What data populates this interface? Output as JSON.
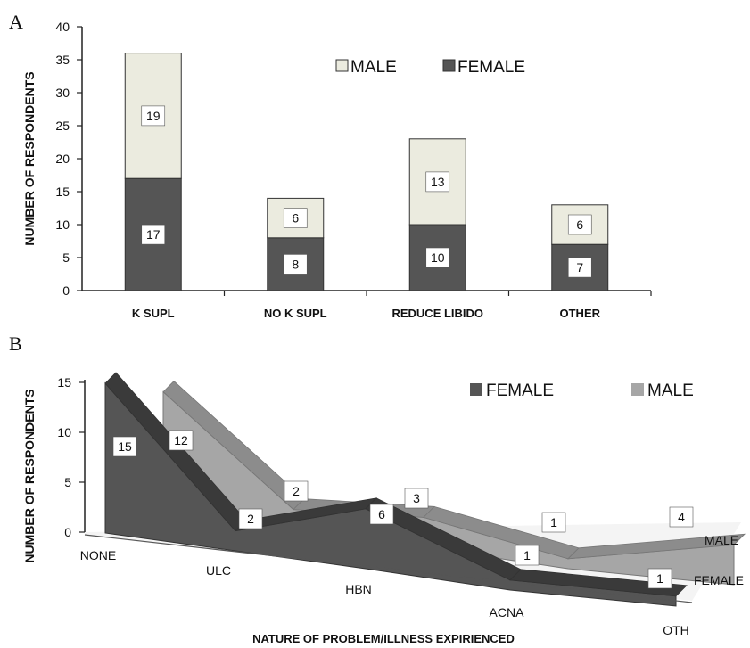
{
  "panels": {
    "a_label": "A",
    "b_label": "B"
  },
  "chart_data": [
    {
      "type": "bar",
      "stacked": true,
      "categories": [
        "K SUPL",
        "NO K SUPL",
        "REDUCE LIBIDO",
        "OTHER"
      ],
      "series": [
        {
          "name": "FEMALE",
          "values": [
            17,
            8,
            10,
            7
          ],
          "color": "#555555"
        },
        {
          "name": "MALE",
          "values": [
            19,
            6,
            13,
            6
          ],
          "color": "#ebebdf"
        }
      ],
      "xlabel": "",
      "ylabel": "NUMBER OF RESPONDENTS",
      "ylim": [
        0,
        40
      ],
      "yticks": [
        0,
        5,
        10,
        15,
        20,
        25,
        30,
        35,
        40
      ],
      "grid": false,
      "legend": {
        "position": "top-right",
        "entries": [
          "MALE",
          "FEMALE"
        ]
      }
    },
    {
      "type": "area",
      "three_d": true,
      "categories": [
        "NONE",
        "ULC",
        "HBN",
        "ACNA",
        "OTH"
      ],
      "series": [
        {
          "name": "FEMALE",
          "values": [
            15,
            2,
            6,
            1,
            1
          ],
          "color": "#555555"
        },
        {
          "name": "MALE",
          "values": [
            12,
            2,
            3,
            1,
            4
          ],
          "color": "#a6a6a6"
        }
      ],
      "depth_labels": [
        "MALE",
        "FEMALE"
      ],
      "xlabel": "NATURE OF PROBLEM/ILLNESS EXPIRIENCED",
      "ylabel": "NUMBER OF RESPONDENTS",
      "ylim": [
        0,
        15
      ],
      "yticks": [
        0,
        5,
        10,
        15
      ],
      "grid": false,
      "legend": {
        "position": "top-right",
        "entries": [
          "FEMALE",
          "MALE"
        ]
      }
    }
  ]
}
